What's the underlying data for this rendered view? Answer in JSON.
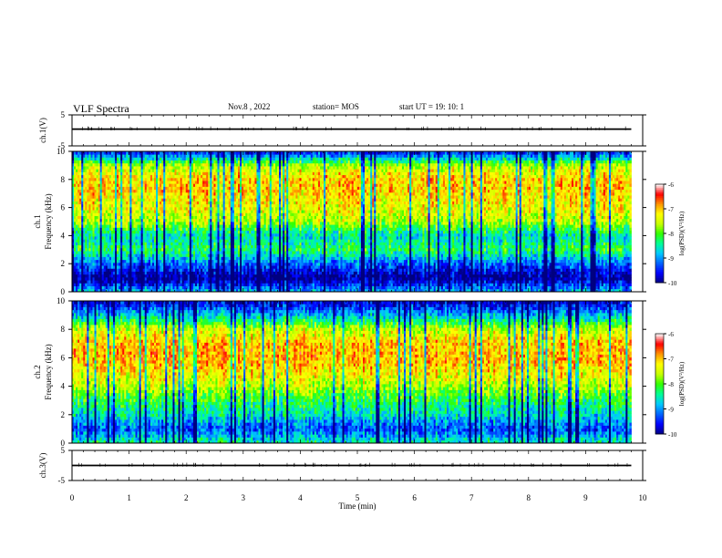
{
  "header": {
    "title": "VLF Spectra",
    "date": "Nov.8 , 2022",
    "station": "station= MOS",
    "start": "start UT = 19: 10: 1"
  },
  "colors": {
    "colormap": [
      "#000080",
      "#0000ff",
      "#0064ff",
      "#00c8ff",
      "#00ff96",
      "#32ff00",
      "#c8ff00",
      "#ffff00",
      "#ff9600",
      "#ff0000",
      "#ffffff"
    ],
    "trace": "#000000"
  },
  "chart_data": [
    {
      "type": "line",
      "name": "ch1-waveform",
      "ylabel": "ch.1(V)",
      "ylim": [
        -5,
        5
      ],
      "yticks": [
        5,
        -5
      ],
      "xlim": [
        0,
        10
      ],
      "x": [
        0,
        9.8
      ],
      "y": [
        0.4,
        0.4
      ]
    },
    {
      "type": "heatmap",
      "name": "ch1-spectrogram",
      "ylabel": "ch.1\nFrequency (kHz)",
      "ylim": [
        0,
        10
      ],
      "yticks": [
        0,
        2,
        4,
        6,
        8,
        10
      ],
      "xlim": [
        0,
        9.8
      ],
      "intensity_range": [
        -10,
        -6
      ],
      "colorbar_label": "log(PSD)(V²/Hz)",
      "colorbar_ticks": [
        -6,
        -7,
        -8,
        -9,
        -10
      ],
      "profile_freq_khz": [
        0,
        1,
        2,
        3,
        4,
        5,
        6,
        7,
        8,
        9,
        10
      ],
      "profile_log_psd": [
        -8.8,
        -10,
        -9.2,
        -8.2,
        -8.6,
        -7.6,
        -7.3,
        -7.1,
        -7.0,
        -7.6,
        -9.6
      ]
    },
    {
      "type": "heatmap",
      "name": "ch2-spectrogram",
      "ylabel": "ch.2\nFrequency (kHz)",
      "ylim": [
        0,
        10
      ],
      "yticks": [
        0,
        2,
        4,
        6,
        8,
        10
      ],
      "xlim": [
        0,
        9.8
      ],
      "intensity_range": [
        -10,
        -6
      ],
      "colorbar_label": "log(PSD)(V²/Hz)",
      "colorbar_ticks": [
        -6,
        -7,
        -8,
        -9,
        -10
      ],
      "profile_freq_khz": [
        0,
        1,
        2,
        3,
        4,
        5,
        6,
        7,
        8,
        9,
        10
      ],
      "profile_log_psd": [
        -8.4,
        -9.3,
        -8.6,
        -8.2,
        -7.6,
        -7.2,
        -6.9,
        -7.0,
        -7.5,
        -8.8,
        -9.8
      ]
    },
    {
      "type": "line",
      "name": "ch3-waveform",
      "ylabel": "ch.3(V)",
      "ylim": [
        -5,
        5
      ],
      "yticks": [
        5,
        -5
      ],
      "xlim": [
        0,
        10
      ],
      "xlabel": "Time (min)",
      "xticks": [
        0,
        1,
        2,
        3,
        4,
        5,
        6,
        7,
        8,
        9,
        10
      ],
      "x": [
        0,
        9.8
      ],
      "y": [
        0.0,
        0.0
      ]
    }
  ]
}
